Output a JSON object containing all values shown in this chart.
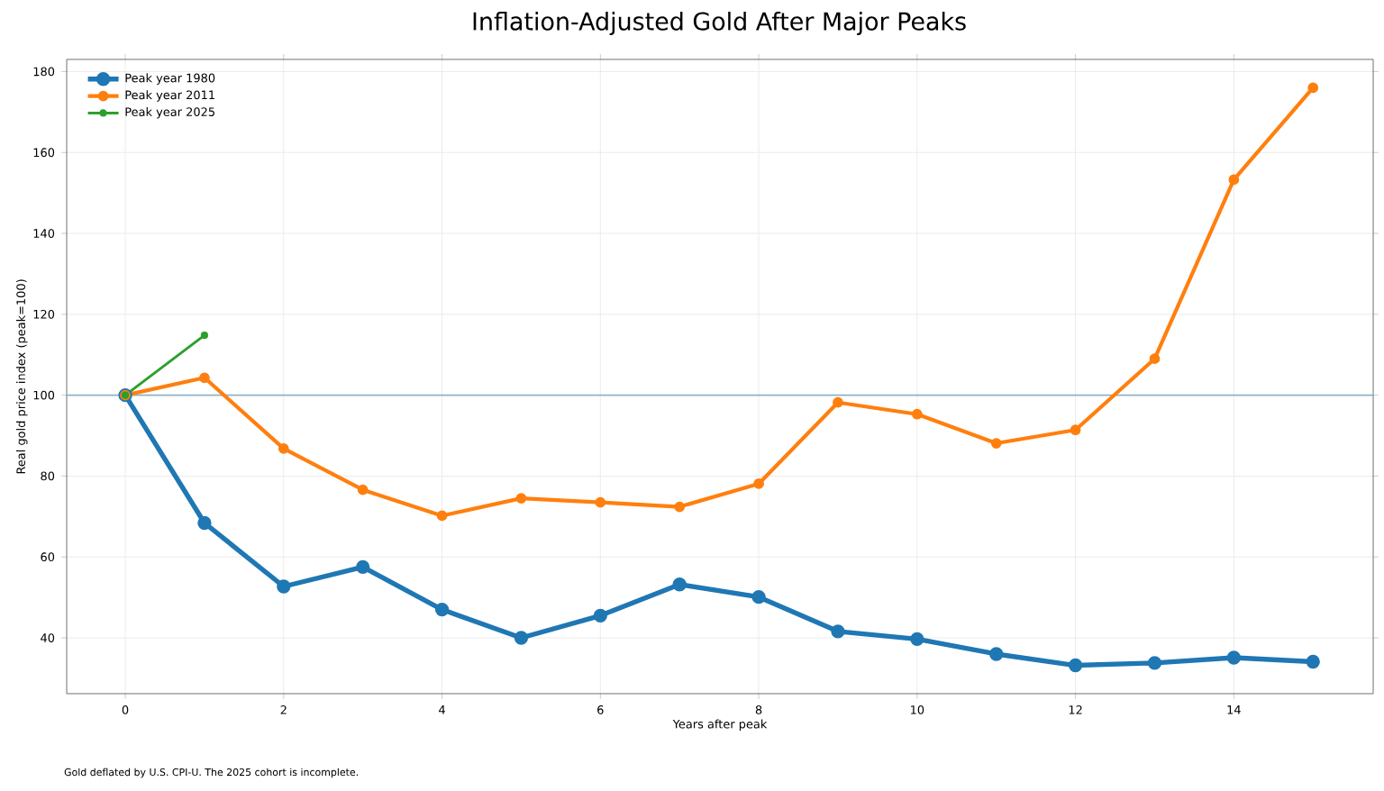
{
  "chart_data": {
    "type": "line",
    "title": "Inflation-Adjusted Gold After Major Peaks",
    "xlabel": "Years after peak",
    "ylabel": "Real gold price index (peak=100)",
    "annotations": [
      "Gold deflated by U.S. CPI-U. The 2025 cohort is incomplete."
    ],
    "series": [
      {
        "name": "Peak year 1980",
        "color": "#1f77b4",
        "x": [
          0,
          1,
          2,
          3,
          4,
          5,
          6,
          7,
          8,
          9,
          10,
          11,
          12,
          13,
          14,
          15
        ],
        "values": [
          100,
          68.4,
          52.7,
          57.5,
          47,
          40,
          45.5,
          53.2,
          50.1,
          41.6,
          39.7,
          36,
          33.2,
          33.8,
          35.1,
          34.1
        ]
      },
      {
        "name": "Peak year 2011",
        "color": "#ff7f0e",
        "x": [
          0,
          1,
          2,
          3,
          4,
          5,
          6,
          7,
          8,
          9,
          10,
          11,
          12,
          13,
          14,
          15
        ],
        "values": [
          100,
          104.3,
          86.8,
          76.6,
          70.2,
          74.5,
          73.5,
          72.4,
          78.1,
          98.2,
          95.3,
          88.1,
          91.4,
          109,
          153.3,
          176
        ]
      },
      {
        "name": "Peak year 2025",
        "color": "#2ca02c",
        "x": [
          0,
          1
        ],
        "values": [
          100,
          114.8
        ]
      }
    ],
    "xlim": [
      -0.74,
      15.76
    ],
    "ylim": [
      26.2,
      183
    ],
    "xticks": [
      0,
      2,
      4,
      6,
      8,
      10,
      12,
      14
    ],
    "yticks": [
      40,
      60,
      80,
      100,
      120,
      140,
      160,
      180
    ],
    "ref_lines": [
      {
        "axis": "y",
        "value": 100,
        "color": "#8fb3c9"
      }
    ],
    "grid": true,
    "legend": "top left",
    "marker": "circle",
    "line_style": "solid"
  }
}
